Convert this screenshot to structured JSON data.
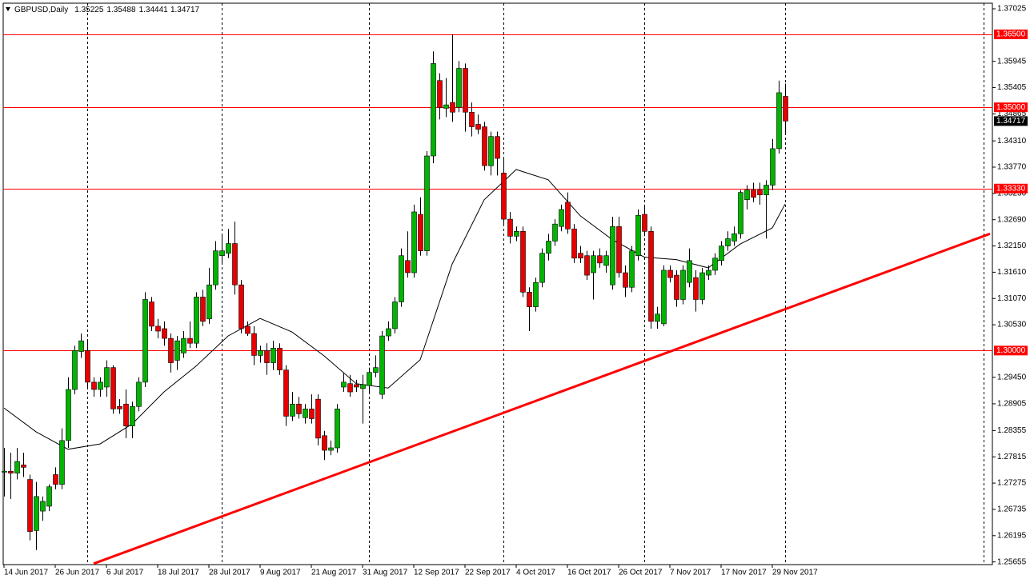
{
  "chart_data": {
    "type": "candlestick",
    "title": "GBPUSD,Daily",
    "header_ohlc": [
      1.35225,
      1.35488,
      1.34441,
      1.34717
    ],
    "up_color": "#00b400",
    "down_color": "#e60000",
    "categories": [
      "14 Jun 2017",
      null,
      null,
      null,
      null,
      null,
      null,
      null,
      "26 Jun 2017",
      null,
      null,
      null,
      null,
      null,
      null,
      null,
      "6 Jul 2017",
      null,
      null,
      null,
      null,
      null,
      null,
      null,
      "18 Jul 2017",
      null,
      null,
      null,
      null,
      null,
      null,
      null,
      "28 Jul 2017",
      null,
      null,
      null,
      null,
      null,
      null,
      null,
      "9 Aug 2017",
      null,
      null,
      null,
      null,
      null,
      null,
      null,
      "21 Aug 2017",
      null,
      null,
      null,
      null,
      null,
      null,
      null,
      "31 Aug 2017",
      null,
      null,
      null,
      null,
      null,
      null,
      null,
      "12 Sep 2017",
      null,
      null,
      null,
      null,
      null,
      null,
      null,
      "22 Sep 2017",
      null,
      null,
      null,
      null,
      null,
      null,
      null,
      "4 Oct 2017",
      null,
      null,
      null,
      null,
      null,
      null,
      null,
      "16 Oct 2017",
      null,
      null,
      null,
      null,
      null,
      null,
      null,
      "26 Oct 2017",
      null,
      null,
      null,
      null,
      null,
      null,
      null,
      "7 Nov 2017",
      null,
      null,
      null,
      null,
      null,
      null,
      null,
      "17 Nov 2017",
      null,
      null,
      null,
      null,
      null,
      null,
      null,
      "29 Nov 2017",
      null,
      null
    ],
    "open": [
      1.275,
      1.2752,
      1.2748,
      1.2765,
      1.2735,
      1.263,
      1.267,
      1.268,
      1.2745,
      1.2725,
      1.2815,
      1.292,
      1.2998,
      1.3,
      1.2935,
      1.292,
      1.2925,
      1.2965,
      1.2885,
      1.289,
      1.2845,
      1.2885,
      1.2935,
      1.31,
      1.305,
      1.3045,
      1.3025,
      1.298,
      1.2995,
      1.3025,
      1.3015,
      1.311,
      1.3065,
      1.3135,
      1.3195,
      1.32,
      1.322,
      1.3135,
      1.305,
      1.3035,
      1.299,
      1.3,
      1.2975,
      1.3005,
      1.296,
      1.2865,
      1.289,
      1.2862,
      1.288,
      1.29,
      1.2825,
      1.2795,
      1.28,
      1.2925,
      1.2932,
      1.293,
      1.2922,
      1.2928,
      1.2955,
      1.291,
      1.303,
      1.3045,
      1.31,
      1.3185,
      1.316,
      1.328,
      1.3205,
      1.34,
      1.3555,
      1.3498,
      1.351,
      1.35,
      1.358,
      1.349,
      1.3465,
      1.346,
      1.338,
      1.344,
      1.3365,
      1.327,
      1.3235,
      1.3245,
      1.312,
      1.309,
      1.314,
      1.32,
      1.3225,
      1.3255,
      1.3305,
      1.325,
      1.32,
      1.3195,
      1.316,
      1.3195,
      1.3175,
      1.3135,
      1.3255,
      1.316,
      1.313,
      1.3195,
      1.328,
      1.3245,
      1.306,
      1.3055,
      1.3165,
      1.3155,
      1.3105,
      1.314,
      1.315,
      1.3105,
      1.3155,
      1.3165,
      1.3185,
      1.3215,
      1.3225,
      1.324,
      1.331,
      1.333,
      1.333,
      1.332,
      1.334,
      1.3415,
      1.35225
    ],
    "high": [
      1.28,
      1.279,
      1.28,
      1.279,
      1.2745,
      1.273,
      1.27,
      1.2725,
      1.276,
      1.284,
      1.2945,
      1.301,
      1.3035,
      1.302,
      1.2945,
      1.2945,
      1.298,
      1.297,
      1.29,
      1.292,
      1.2895,
      1.2945,
      1.312,
      1.311,
      1.3065,
      1.306,
      1.3035,
      1.303,
      1.304,
      1.306,
      1.312,
      1.3125,
      1.317,
      1.3225,
      1.324,
      1.325,
      1.3265,
      1.3145,
      1.306,
      1.305,
      1.301,
      1.3015,
      1.302,
      1.3015,
      1.297,
      1.2915,
      1.2905,
      1.289,
      1.291,
      1.291,
      1.2835,
      1.2815,
      1.289,
      1.2955,
      1.295,
      1.294,
      1.295,
      1.2965,
      1.299,
      1.304,
      1.306,
      1.311,
      1.321,
      1.3245,
      1.33,
      1.3315,
      1.341,
      1.3615,
      1.357,
      1.356,
      1.365,
      1.3595,
      1.359,
      1.351,
      1.3485,
      1.347,
      1.345,
      1.345,
      1.3395,
      1.3285,
      1.3255,
      1.3255,
      1.313,
      1.315,
      1.321,
      1.324,
      1.327,
      1.33,
      1.3325,
      1.326,
      1.3215,
      1.3205,
      1.3205,
      1.321,
      1.3205,
      1.3275,
      1.3275,
      1.3175,
      1.3215,
      1.329,
      1.33,
      1.3255,
      1.309,
      1.3175,
      1.3175,
      1.3165,
      1.3175,
      1.321,
      1.3165,
      1.317,
      1.3175,
      1.32,
      1.3225,
      1.3245,
      1.3255,
      1.333,
      1.334,
      1.3345,
      1.3345,
      1.335,
      1.3435,
      1.3555,
      1.35488
    ],
    "low": [
      1.27,
      1.2695,
      1.2735,
      1.274,
      1.261,
      1.259,
      1.265,
      1.267,
      1.2715,
      1.2715,
      1.28,
      1.291,
      1.2985,
      1.2925,
      1.2905,
      1.2905,
      1.2905,
      1.287,
      1.287,
      1.282,
      1.282,
      1.2875,
      1.2925,
      1.304,
      1.3025,
      1.301,
      1.2955,
      1.296,
      1.2985,
      1.3005,
      1.3005,
      1.305,
      1.3055,
      1.3125,
      1.318,
      1.319,
      1.3115,
      1.3035,
      1.303,
      1.297,
      1.2975,
      1.295,
      1.296,
      1.295,
      1.2845,
      1.2855,
      1.286,
      1.285,
      1.285,
      1.2805,
      1.2775,
      1.2785,
      1.279,
      1.2915,
      1.2905,
      1.2915,
      1.285,
      1.2915,
      1.2945,
      1.29,
      1.302,
      1.3035,
      1.309,
      1.315,
      1.315,
      1.3195,
      1.3195,
      1.3385,
      1.3475,
      1.348,
      1.347,
      1.349,
      1.345,
      1.344,
      1.3445,
      1.337,
      1.336,
      1.336,
      1.326,
      1.322,
      1.3225,
      1.311,
      1.304,
      1.308,
      1.313,
      1.3185,
      1.3215,
      1.3245,
      1.324,
      1.318,
      1.318,
      1.3145,
      1.3105,
      1.317,
      1.316,
      1.3125,
      1.315,
      1.311,
      1.312,
      1.3185,
      1.3235,
      1.3045,
      1.3045,
      1.305,
      1.314,
      1.309,
      1.3095,
      1.313,
      1.308,
      1.3095,
      1.3145,
      1.3155,
      1.3175,
      1.3205,
      1.3215,
      1.323,
      1.329,
      1.3305,
      1.33,
      1.323,
      1.333,
      1.3405,
      1.34441
    ],
    "close": [
      1.2752,
      1.2748,
      1.2772,
      1.276,
      1.2628,
      1.27,
      1.269,
      1.272,
      1.2725,
      1.2815,
      1.292,
      1.3,
      1.302,
      1.2935,
      1.292,
      1.2935,
      1.2965,
      1.288,
      1.288,
      1.2845,
      1.2885,
      1.2935,
      1.3105,
      1.305,
      1.304,
      1.3025,
      1.2975,
      1.302,
      1.3025,
      1.3015,
      1.311,
      1.306,
      1.3135,
      1.3205,
      1.3205,
      1.322,
      1.3135,
      1.3045,
      1.3035,
      1.299,
      1.3,
      1.2975,
      1.3005,
      1.296,
      1.2865,
      1.289,
      1.287,
      1.288,
      1.286,
      1.282,
      1.2795,
      1.28,
      1.288,
      1.2935,
      1.2915,
      1.2925,
      1.293,
      1.2955,
      1.2965,
      1.303,
      1.3045,
      1.31,
      1.3195,
      1.316,
      1.3285,
      1.3205,
      1.34,
      1.359,
      1.35,
      1.3505,
      1.349,
      1.358,
      1.349,
      1.346,
      1.3455,
      1.338,
      1.344,
      1.3395,
      1.327,
      1.3235,
      1.3245,
      1.312,
      1.309,
      1.314,
      1.32,
      1.3225,
      1.326,
      1.329,
      1.325,
      1.319,
      1.319,
      1.3155,
      1.3195,
      1.318,
      1.3195,
      1.3255,
      1.316,
      1.313,
      1.3205,
      1.3278,
      1.3245,
      1.306,
      1.3075,
      1.3165,
      1.315,
      1.3105,
      1.3165,
      1.3185,
      1.3105,
      1.316,
      1.3165,
      1.319,
      1.3215,
      1.323,
      1.324,
      1.3325,
      1.333,
      1.3315,
      1.332,
      1.334,
      1.3415,
      1.353,
      1.34717
    ],
    "ma": {
      "color": "#000000",
      "index": [
        0,
        5,
        10,
        15,
        20,
        25,
        30,
        35,
        40,
        45,
        50,
        55,
        60,
        65,
        70,
        75,
        80,
        85,
        90,
        95,
        100,
        105,
        110,
        115,
        120,
        122
      ],
      "values": [
        1.2882,
        1.2833,
        1.2797,
        1.2808,
        1.2849,
        1.2915,
        1.2968,
        1.303,
        1.3066,
        1.3038,
        1.2989,
        1.2932,
        1.2923,
        1.2981,
        1.3178,
        1.331,
        1.3372,
        1.3351,
        1.3277,
        1.3228,
        1.3192,
        1.3187,
        1.317,
        1.3219,
        1.3252,
        1.3301
      ]
    },
    "trendline": {
      "color": "#ff0000",
      "index": [
        14,
        154
      ],
      "prices": [
        1.2562,
        1.324
      ]
    },
    "levels": [
      {
        "value": 1.365,
        "label": "1.36500"
      },
      {
        "value": 1.35,
        "label": "1.35000"
      },
      {
        "value": 1.3333,
        "label": "1.33330"
      },
      {
        "value": 1.3,
        "label": "1.30000"
      }
    ],
    "level_color": "#ff0000",
    "current_price": 1.34717,
    "xgrid": [
      13,
      34,
      57,
      78,
      100,
      122,
      153
    ],
    "xlim": [
      -0.125,
      154.375
    ],
    "ylim": [
      1.256,
      1.3714
    ],
    "yticks": [
      1.37025,
      1.35945,
      1.35405,
      1.34865,
      {
        "value": 1.3431,
        "label": "1.34310"
      },
      {
        "value": 1.3377,
        "label": "1.33770"
      },
      {
        "value": 1.3323,
        "label": "1.33230"
      },
      {
        "value": 1.3269,
        "label": "1.32690"
      },
      {
        "value": 1.3215,
        "label": "1.32150"
      },
      {
        "value": 1.3161,
        "label": "1.31610"
      },
      {
        "value": 1.3107,
        "label": "1.31070"
      },
      {
        "value": 1.3053,
        "label": "1.30530"
      },
      {
        "value": 1.2945,
        "label": "1.29450"
      },
      1.28905,
      1.28355,
      1.27815,
      1.27275,
      1.26735,
      1.26195,
      1.25655
    ]
  }
}
